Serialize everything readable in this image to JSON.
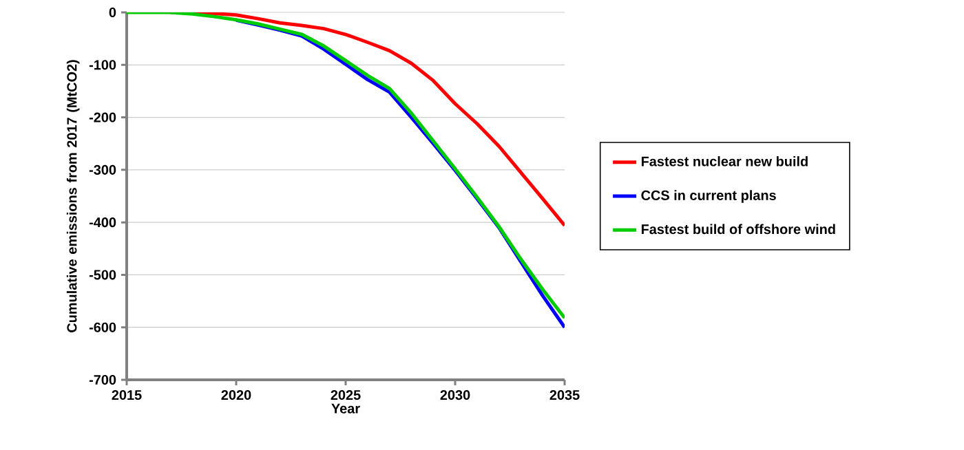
{
  "chart_data": {
    "type": "line",
    "xlabel": "Year",
    "ylabel": "Cumulative emissions from 2017 (MtCO2)",
    "x": [
      2015,
      2016,
      2017,
      2018,
      2019,
      2020,
      2021,
      2022,
      2023,
      2024,
      2025,
      2026,
      2027,
      2028,
      2029,
      2030,
      2031,
      2032,
      2033,
      2034,
      2035
    ],
    "series": [
      {
        "name": "Fastest nuclear new build",
        "color": "#ff0000",
        "values": [
          null,
          null,
          0,
          0,
          -2,
          -5,
          -12,
          -20,
          -25,
          -31,
          -42,
          -57,
          -73,
          -97,
          -130,
          -174,
          -212,
          -255,
          -305,
          -355,
          -406
        ]
      },
      {
        "name": "CCS in current plans",
        "color": "#0000ff",
        "values": [
          null,
          null,
          null,
          null,
          null,
          -15,
          -24,
          -34,
          -45,
          -70,
          -99,
          -128,
          -152,
          -200,
          -250,
          -301,
          -355,
          -410,
          -475,
          -540,
          -600
        ]
      },
      {
        "name": "Fastest build of offshore wind",
        "color": "#00cc00",
        "values": [
          0,
          0,
          0,
          -3,
          -8,
          -14,
          -22,
          -32,
          -42,
          -64,
          -92,
          -120,
          -145,
          -192,
          -245,
          -298,
          -352,
          -408,
          -470,
          -528,
          -582
        ]
      }
    ],
    "xlim": [
      2015,
      2035
    ],
    "xticks": [
      2015,
      2020,
      2025,
      2030,
      2035
    ],
    "ylim": [
      -700,
      0
    ],
    "yticks": [
      -700,
      -600,
      -500,
      -400,
      -300,
      -200,
      -100,
      0
    ],
    "grid": "y",
    "legend": "right",
    "marker": "none",
    "line_style": "solid"
  }
}
